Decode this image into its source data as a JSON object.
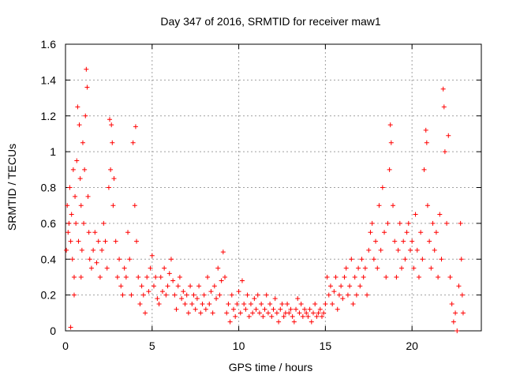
{
  "chart_data": {
    "type": "scatter",
    "title": "Day 347 of 2016, SRMTID for receiver maw1",
    "xlabel": "GPS time / hours",
    "ylabel": "SRMTID / TECUs",
    "xlim": [
      0,
      24
    ],
    "ylim": [
      0,
      1.6
    ],
    "grid": true,
    "marker": "+",
    "color": "#ff0000",
    "x_ticks": [
      0,
      5,
      10,
      15,
      20
    ],
    "x_tick_labels": [
      "0",
      "5",
      "10",
      "15",
      "20"
    ],
    "y_ticks": [
      0,
      0.2,
      0.4,
      0.6,
      0.8,
      1.0,
      1.2,
      1.4,
      1.6
    ],
    "y_tick_labels": [
      "0",
      "0.2",
      "0.4",
      "0.6",
      "0.8",
      "1",
      "1.2",
      "1.4",
      "1.6"
    ],
    "series": [
      {
        "name": "SRMTID",
        "points": [
          [
            0.05,
            0.45
          ],
          [
            0.1,
            0.7
          ],
          [
            0.15,
            0.55
          ],
          [
            0.2,
            0.6
          ],
          [
            0.25,
            0.8
          ],
          [
            0.3,
            0.5
          ],
          [
            0.35,
            0.65
          ],
          [
            0.4,
            0.4
          ],
          [
            0.45,
            0.9
          ],
          [
            0.5,
            0.3
          ],
          [
            0.55,
            0.75
          ],
          [
            0.6,
            0.6
          ],
          [
            0.65,
            0.95
          ],
          [
            0.7,
            1.25
          ],
          [
            0.75,
            0.5
          ],
          [
            0.8,
            1.15
          ],
          [
            0.85,
            0.85
          ],
          [
            0.9,
            0.7
          ],
          [
            0.95,
            0.45
          ],
          [
            1.0,
            1.05
          ],
          [
            1.05,
            0.6
          ],
          [
            1.1,
            0.9
          ],
          [
            1.15,
            1.2
          ],
          [
            1.2,
            1.46
          ],
          [
            1.25,
            1.36
          ],
          [
            1.3,
            0.75
          ],
          [
            1.35,
            0.55
          ],
          [
            1.4,
            0.4
          ],
          [
            1.5,
            0.35
          ],
          [
            1.6,
            0.45
          ],
          [
            0.3,
            0.02
          ],
          [
            0.5,
            0.2
          ],
          [
            0.9,
            0.3
          ],
          [
            1.7,
            0.55
          ],
          [
            1.8,
            0.38
          ],
          [
            1.9,
            0.5
          ],
          [
            2.0,
            0.3
          ],
          [
            2.1,
            0.45
          ],
          [
            2.2,
            0.6
          ],
          [
            2.3,
            0.5
          ],
          [
            2.4,
            0.35
          ],
          [
            2.5,
            0.8
          ],
          [
            2.55,
            1.18
          ],
          [
            2.6,
            0.9
          ],
          [
            2.65,
            1.15
          ],
          [
            2.7,
            1.05
          ],
          [
            2.75,
            0.7
          ],
          [
            2.8,
            0.85
          ],
          [
            2.9,
            0.5
          ],
          [
            3.0,
            0.3
          ],
          [
            3.1,
            0.4
          ],
          [
            3.2,
            0.25
          ],
          [
            3.3,
            0.2
          ],
          [
            3.4,
            0.35
          ],
          [
            3.5,
            0.3
          ],
          [
            3.6,
            0.55
          ],
          [
            3.7,
            0.4
          ],
          [
            3.8,
            0.2
          ],
          [
            3.9,
            1.05
          ],
          [
            4.0,
            0.7
          ],
          [
            4.05,
            1.14
          ],
          [
            4.1,
            0.5
          ],
          [
            4.2,
            0.3
          ],
          [
            4.3,
            0.15
          ],
          [
            4.4,
            0.25
          ],
          [
            4.5,
            0.2
          ],
          [
            4.6,
            0.1
          ],
          [
            4.7,
            0.3
          ],
          [
            4.8,
            0.22
          ],
          [
            4.9,
            0.35
          ],
          [
            5.0,
            0.42
          ],
          [
            5.1,
            0.25
          ],
          [
            5.2,
            0.3
          ],
          [
            5.3,
            0.18
          ],
          [
            5.4,
            0.15
          ],
          [
            5.5,
            0.3
          ],
          [
            5.6,
            0.22
          ],
          [
            5.7,
            0.35
          ],
          [
            5.8,
            0.2
          ],
          [
            5.9,
            0.25
          ],
          [
            6.0,
            0.32
          ],
          [
            6.1,
            0.4
          ],
          [
            6.2,
            0.28
          ],
          [
            6.3,
            0.2
          ],
          [
            6.4,
            0.12
          ],
          [
            6.5,
            0.25
          ],
          [
            6.6,
            0.3
          ],
          [
            6.7,
            0.18
          ],
          [
            6.8,
            0.22
          ],
          [
            6.9,
            0.15
          ],
          [
            7.0,
            0.2
          ],
          [
            7.1,
            0.1
          ],
          [
            7.2,
            0.25
          ],
          [
            7.3,
            0.15
          ],
          [
            7.4,
            0.2
          ],
          [
            7.5,
            0.12
          ],
          [
            7.6,
            0.18
          ],
          [
            7.7,
            0.25
          ],
          [
            7.8,
            0.1
          ],
          [
            7.9,
            0.15
          ],
          [
            8.0,
            0.2
          ],
          [
            8.1,
            0.12
          ],
          [
            8.2,
            0.3
          ],
          [
            8.3,
            0.15
          ],
          [
            8.4,
            0.22
          ],
          [
            8.5,
            0.1
          ],
          [
            8.6,
            0.25
          ],
          [
            8.7,
            0.18
          ],
          [
            8.8,
            0.35
          ],
          [
            8.9,
            0.2
          ],
          [
            9.0,
            0.28
          ],
          [
            9.1,
            0.44
          ],
          [
            9.2,
            0.3
          ],
          [
            9.3,
            0.1
          ],
          [
            9.4,
            0.15
          ],
          [
            9.5,
            0.05
          ],
          [
            9.6,
            0.2
          ],
          [
            9.7,
            0.12
          ],
          [
            9.8,
            0.08
          ],
          [
            9.9,
            0.15
          ],
          [
            10.0,
            0.22
          ],
          [
            10.1,
            0.1
          ],
          [
            10.2,
            0.28
          ],
          [
            10.3,
            0.15
          ],
          [
            10.4,
            0.12
          ],
          [
            10.5,
            0.2
          ],
          [
            10.6,
            0.08
          ],
          [
            10.7,
            0.15
          ],
          [
            10.8,
            0.1
          ],
          [
            10.9,
            0.18
          ],
          [
            11.0,
            0.12
          ],
          [
            11.1,
            0.2
          ],
          [
            11.2,
            0.1
          ],
          [
            11.3,
            0.15
          ],
          [
            11.4,
            0.08
          ],
          [
            11.5,
            0.12
          ],
          [
            11.6,
            0.2
          ],
          [
            11.7,
            0.1
          ],
          [
            11.8,
            0.15
          ],
          [
            11.9,
            0.08
          ],
          [
            12.0,
            0.12
          ],
          [
            12.1,
            0.18
          ],
          [
            12.2,
            0.1
          ],
          [
            12.3,
            0.05
          ],
          [
            12.4,
            0.12
          ],
          [
            12.5,
            0.15
          ],
          [
            12.6,
            0.08
          ],
          [
            12.7,
            0.1
          ],
          [
            12.8,
            0.15
          ],
          [
            12.9,
            0.1
          ],
          [
            13.0,
            0.12
          ],
          [
            13.1,
            0.08
          ],
          [
            13.2,
            0.05
          ],
          [
            13.3,
            0.12
          ],
          [
            13.4,
            0.18
          ],
          [
            13.5,
            0.1
          ],
          [
            13.6,
            0.15
          ],
          [
            13.7,
            0.08
          ],
          [
            13.8,
            0.12
          ],
          [
            13.9,
            0.1
          ],
          [
            14.0,
            0.08
          ],
          [
            14.1,
            0.12
          ],
          [
            14.2,
            0.05
          ],
          [
            14.3,
            0.1
          ],
          [
            14.4,
            0.15
          ],
          [
            14.5,
            0.08
          ],
          [
            14.6,
            0.1
          ],
          [
            14.7,
            0.12
          ],
          [
            14.8,
            0.08
          ],
          [
            14.9,
            0.1
          ],
          [
            15.0,
            0.15
          ],
          [
            15.1,
            0.3
          ],
          [
            15.2,
            0.2
          ],
          [
            15.3,
            0.25
          ],
          [
            15.4,
            0.15
          ],
          [
            15.5,
            0.22
          ],
          [
            15.6,
            0.3
          ],
          [
            15.7,
            0.12
          ],
          [
            15.8,
            0.2
          ],
          [
            15.9,
            0.25
          ],
          [
            16.0,
            0.18
          ],
          [
            16.1,
            0.3
          ],
          [
            16.2,
            0.35
          ],
          [
            16.3,
            0.2
          ],
          [
            16.4,
            0.25
          ],
          [
            16.5,
            0.4
          ],
          [
            16.6,
            0.15
          ],
          [
            16.7,
            0.3
          ],
          [
            16.8,
            0.2
          ],
          [
            16.9,
            0.35
          ],
          [
            17.0,
            0.25
          ],
          [
            17.1,
            0.4
          ],
          [
            17.2,
            0.3
          ],
          [
            17.3,
            0.35
          ],
          [
            17.4,
            0.2
          ],
          [
            17.5,
            0.45
          ],
          [
            17.6,
            0.55
          ],
          [
            17.7,
            0.6
          ],
          [
            17.8,
            0.4
          ],
          [
            17.9,
            0.5
          ],
          [
            18.0,
            0.35
          ],
          [
            18.1,
            0.7
          ],
          [
            18.2,
            0.45
          ],
          [
            18.3,
            0.8
          ],
          [
            18.4,
            0.55
          ],
          [
            18.5,
            0.3
          ],
          [
            18.6,
            0.6
          ],
          [
            18.7,
            0.9
          ],
          [
            18.75,
            1.15
          ],
          [
            18.8,
            1.05
          ],
          [
            18.9,
            0.7
          ],
          [
            19.0,
            0.5
          ],
          [
            19.1,
            0.3
          ],
          [
            19.2,
            0.45
          ],
          [
            19.3,
            0.6
          ],
          [
            19.4,
            0.35
          ],
          [
            19.5,
            0.5
          ],
          [
            19.6,
            0.4
          ],
          [
            19.7,
            0.55
          ],
          [
            19.8,
            0.6
          ],
          [
            19.9,
            0.45
          ],
          [
            20.0,
            0.5
          ],
          [
            20.1,
            0.35
          ],
          [
            20.2,
            0.65
          ],
          [
            20.3,
            0.45
          ],
          [
            20.4,
            0.3
          ],
          [
            20.5,
            0.55
          ],
          [
            20.6,
            0.4
          ],
          [
            20.7,
            0.9
          ],
          [
            20.8,
            1.12
          ],
          [
            20.85,
            1.05
          ],
          [
            20.9,
            0.7
          ],
          [
            21.0,
            0.5
          ],
          [
            21.1,
            0.35
          ],
          [
            21.2,
            0.6
          ],
          [
            21.3,
            0.45
          ],
          [
            21.4,
            0.55
          ],
          [
            21.5,
            0.3
          ],
          [
            21.6,
            0.65
          ],
          [
            21.7,
            0.4
          ],
          [
            21.8,
            1.35
          ],
          [
            21.85,
            1.25
          ],
          [
            21.9,
            1.0
          ],
          [
            22.0,
            0.6
          ],
          [
            22.1,
            1.09
          ],
          [
            22.2,
            0.3
          ],
          [
            22.3,
            0.15
          ],
          [
            22.4,
            0.05
          ],
          [
            22.5,
            0.1
          ],
          [
            22.6,
            0.0
          ],
          [
            22.7,
            0.25
          ],
          [
            22.8,
            0.6
          ],
          [
            22.85,
            0.4
          ],
          [
            22.9,
            0.2
          ],
          [
            22.95,
            0.1
          ]
        ]
      }
    ]
  }
}
